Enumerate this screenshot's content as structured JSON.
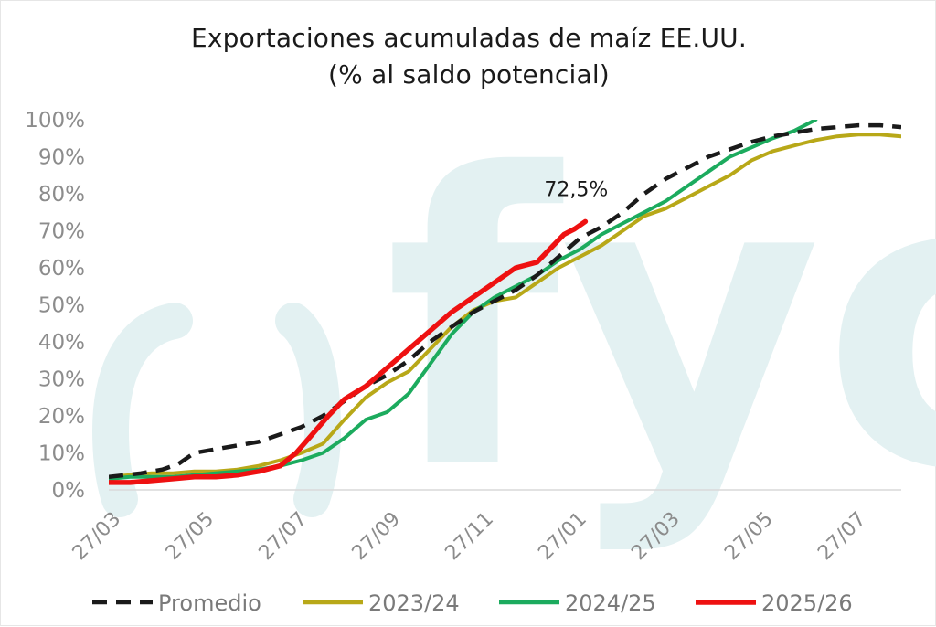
{
  "title": "Exportaciones acumuladas de maíz EE.UU.",
  "subtitle": "(% al saldo potencial)",
  "watermark": "fyo",
  "colors": {
    "promedio": "#1a1a1a",
    "s2324": "#b8a818",
    "s2425": "#1cab5e",
    "s2526": "#ee1111",
    "axis_text": "#8c8c8c",
    "watermark": "#e3f1f2"
  },
  "chart_data": {
    "type": "line",
    "title": "Exportaciones acumuladas de maíz EE.UU.",
    "subtitle": "(% al saldo potencial)",
    "xlabel": "",
    "ylabel": "",
    "x_tick_labels": [
      "27/03",
      "27/05",
      "27/07",
      "27/09",
      "27/11",
      "27/01",
      "27/03",
      "27/05",
      "27/07"
    ],
    "x_tick_weeks": [
      0,
      8.7,
      17.4,
      26.1,
      34.8,
      43.5,
      52.2,
      60.9,
      69.6
    ],
    "xlim": [
      0,
      74
    ],
    "y_tick_labels": [
      "0%",
      "10%",
      "20%",
      "30%",
      "40%",
      "50%",
      "60%",
      "70%",
      "80%",
      "90%",
      "100%"
    ],
    "ylim": [
      0,
      100
    ],
    "grid": false,
    "legend_position": "bottom",
    "annotation": {
      "text": "72,5%",
      "series": "2025/26",
      "x": 44.5,
      "y": 72.5
    },
    "series": [
      {
        "name": "Promedio",
        "style": "dashed",
        "x": [
          0,
          3,
          5,
          6.5,
          8,
          10,
          12,
          14,
          16,
          18,
          20,
          22,
          24,
          26,
          28,
          30,
          32,
          34,
          36,
          38,
          40,
          42,
          44,
          46,
          48,
          50,
          52,
          54,
          56,
          58,
          60,
          62,
          64,
          66,
          68,
          70,
          72,
          74
        ],
        "y": [
          3.5,
          4.5,
          5.5,
          7,
          10,
          11,
          12,
          13,
          15,
          17,
          20,
          24,
          28,
          31,
          35,
          40,
          44,
          48,
          51,
          54,
          58,
          63,
          68,
          71,
          75,
          80,
          84,
          87,
          90,
          92,
          94,
          95.5,
          96.5,
          97.5,
          98,
          98.5,
          98.5,
          98
        ]
      },
      {
        "name": "2023/24",
        "style": "solid",
        "x": [
          0,
          2,
          4,
          6,
          8,
          10,
          12,
          14,
          16,
          18,
          20,
          22,
          24,
          26,
          28,
          30,
          32,
          34,
          36,
          38,
          40,
          42,
          44,
          46,
          48,
          50,
          52,
          54,
          56,
          58,
          60,
          62,
          64,
          66,
          68,
          70,
          72,
          74
        ],
        "y": [
          3.5,
          4,
          4.5,
          4.5,
          5,
          5,
          5.5,
          6.5,
          8,
          10,
          12.5,
          19,
          25,
          29,
          32,
          38,
          44,
          48.5,
          51,
          52,
          56,
          60,
          63,
          66,
          70,
          74,
          76,
          79,
          82,
          85,
          89,
          91.5,
          93,
          94.5,
          95.5,
          96,
          96,
          95.5
        ]
      },
      {
        "name": "2024/25",
        "style": "solid",
        "x": [
          0,
          2,
          4,
          6,
          8,
          10,
          12,
          14,
          16,
          18,
          20,
          22,
          24,
          26,
          28,
          30,
          32,
          34,
          36,
          38,
          40,
          42,
          44,
          46,
          48,
          50,
          52,
          54,
          56,
          58,
          60,
          62,
          64,
          66
        ],
        "y": [
          3,
          3.5,
          3.5,
          3.5,
          4,
          4.5,
          5,
          5.5,
          6.5,
          8,
          10,
          14,
          19,
          21,
          26,
          34,
          42,
          48,
          52,
          55,
          58,
          62,
          65,
          69,
          72,
          75,
          78,
          82,
          86,
          90,
          92.5,
          95,
          97,
          100
        ]
      },
      {
        "name": "2025/26",
        "style": "solid",
        "x": [
          0,
          2,
          4,
          6,
          8,
          10,
          12,
          14,
          16,
          17.5,
          19,
          20.5,
          22,
          24,
          26,
          28,
          30,
          32,
          34,
          36,
          38,
          40,
          41.5,
          42.5,
          43.5,
          44.5
        ],
        "y": [
          2,
          2,
          2.5,
          3,
          3.5,
          3.5,
          4,
          5,
          6.5,
          10,
          15,
          20,
          24.5,
          28,
          33,
          38,
          43,
          48,
          52,
          56,
          60,
          61.5,
          66,
          69,
          70.5,
          72.5
        ]
      }
    ]
  }
}
